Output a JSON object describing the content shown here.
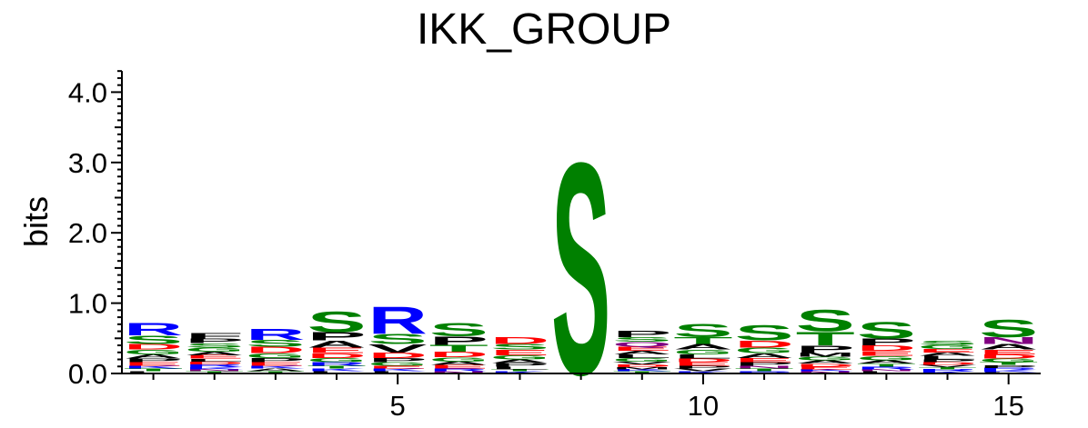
{
  "chart_data": {
    "type": "sequence-logo",
    "title": "IKK_GROUP",
    "ylabel": "bits",
    "xlabel": "",
    "ylim": [
      0,
      4.3
    ],
    "yticks": [
      "0.0",
      "1.0",
      "2.0",
      "3.0",
      "4.0"
    ],
    "xticks": [
      "5",
      "10",
      "15"
    ],
    "xtick_positions": [
      5,
      10,
      15
    ],
    "positions": [
      1,
      2,
      3,
      4,
      5,
      6,
      7,
      8,
      9,
      10,
      11,
      12,
      13,
      14,
      15
    ],
    "colors": {
      "R": "#0000ff",
      "K": "#0000ff",
      "H": "#0000ff",
      "D": "#ff0000",
      "E": "#ff0000",
      "S": "#008000",
      "T": "#008000",
      "G": "#008000",
      "Y": "#008000",
      "C": "#008000",
      "N": "#800080",
      "Q": "#800080",
      "P": "#000000",
      "A": "#000000",
      "V": "#000000",
      "L": "#000000",
      "I": "#000000",
      "M": "#000000",
      "F": "#000000",
      "W": "#000000"
    },
    "columns": [
      {
        "pos": 1,
        "letters": [
          [
            "R",
            0.18
          ],
          [
            "S",
            0.12
          ],
          [
            "D",
            0.08
          ],
          [
            "G",
            0.07
          ],
          [
            "A",
            0.06
          ],
          [
            "E",
            0.05
          ],
          [
            "P",
            0.05
          ],
          [
            "T",
            0.04
          ],
          [
            "K",
            0.04
          ],
          [
            "L",
            0.03
          ]
        ]
      },
      {
        "pos": 2,
        "letters": [
          [
            "F",
            0.08
          ],
          [
            "P",
            0.07
          ],
          [
            "G",
            0.06
          ],
          [
            "S",
            0.06
          ],
          [
            "E",
            0.05
          ],
          [
            "A",
            0.05
          ],
          [
            "R",
            0.04
          ],
          [
            "D",
            0.04
          ],
          [
            "L",
            0.04
          ],
          [
            "T",
            0.03
          ],
          [
            "N",
            0.03
          ],
          [
            "K",
            0.03
          ]
        ]
      },
      {
        "pos": 3,
        "letters": [
          [
            "R",
            0.16
          ],
          [
            "S",
            0.1
          ],
          [
            "D",
            0.09
          ],
          [
            "G",
            0.07
          ],
          [
            "P",
            0.06
          ],
          [
            "E",
            0.05
          ],
          [
            "A",
            0.04
          ],
          [
            "K",
            0.04
          ],
          [
            "T",
            0.03
          ]
        ]
      },
      {
        "pos": 4,
        "letters": [
          [
            "S",
            0.3
          ],
          [
            "P",
            0.12
          ],
          [
            "A",
            0.1
          ],
          [
            "E",
            0.08
          ],
          [
            "D",
            0.07
          ],
          [
            "G",
            0.06
          ],
          [
            "R",
            0.05
          ],
          [
            "K",
            0.04
          ],
          [
            "T",
            0.04
          ],
          [
            "L",
            0.03
          ]
        ]
      },
      {
        "pos": 5,
        "letters": [
          [
            "R",
            0.4
          ],
          [
            "S",
            0.15
          ],
          [
            "V",
            0.12
          ],
          [
            "D",
            0.08
          ],
          [
            "P",
            0.06
          ],
          [
            "G",
            0.05
          ],
          [
            "K",
            0.04
          ],
          [
            "E",
            0.04
          ],
          [
            "L",
            0.03
          ]
        ]
      },
      {
        "pos": 6,
        "letters": [
          [
            "P",
            0.12
          ],
          [
            "S",
            0.2
          ],
          [
            "T",
            0.1
          ],
          [
            "D",
            0.08
          ],
          [
            "G",
            0.06
          ],
          [
            "E",
            0.05
          ],
          [
            "A",
            0.05
          ],
          [
            "R",
            0.04
          ],
          [
            "N",
            0.03
          ]
        ]
      },
      {
        "pos": 7,
        "letters": [
          [
            "D",
            0.1
          ],
          [
            "E",
            0.08
          ],
          [
            "S",
            0.08
          ],
          [
            "G",
            0.06
          ],
          [
            "P",
            0.05
          ],
          [
            "A",
            0.05
          ],
          [
            "L",
            0.04
          ],
          [
            "K",
            0.03
          ],
          [
            "T",
            0.03
          ]
        ]
      },
      {
        "pos": 8,
        "letters": [
          [
            "S",
            3.1
          ]
        ]
      },
      {
        "pos": 9,
        "letters": [
          [
            "P",
            0.09
          ],
          [
            "Q",
            0.07
          ],
          [
            "S",
            0.07
          ],
          [
            "E",
            0.06
          ],
          [
            "G",
            0.05
          ],
          [
            "L",
            0.05
          ],
          [
            "A",
            0.05
          ],
          [
            "D",
            0.04
          ],
          [
            "V",
            0.04
          ],
          [
            "T",
            0.03
          ],
          [
            "K",
            0.03
          ],
          [
            "M",
            0.03
          ]
        ]
      },
      {
        "pos": 10,
        "letters": [
          [
            "S",
            0.2
          ],
          [
            "T",
            0.1
          ],
          [
            "A",
            0.08
          ],
          [
            "G",
            0.07
          ],
          [
            "L",
            0.06
          ],
          [
            "E",
            0.05
          ],
          [
            "D",
            0.05
          ],
          [
            "V",
            0.04
          ],
          [
            "P",
            0.04
          ],
          [
            "K",
            0.03
          ]
        ]
      },
      {
        "pos": 11,
        "letters": [
          [
            "S",
            0.22
          ],
          [
            "D",
            0.1
          ],
          [
            "G",
            0.08
          ],
          [
            "A",
            0.07
          ],
          [
            "E",
            0.06
          ],
          [
            "P",
            0.05
          ],
          [
            "T",
            0.04
          ],
          [
            "N",
            0.04
          ],
          [
            "R",
            0.03
          ]
        ]
      },
      {
        "pos": 12,
        "letters": [
          [
            "S",
            0.32
          ],
          [
            "T",
            0.2
          ],
          [
            "P",
            0.1
          ],
          [
            "M",
            0.06
          ],
          [
            "A",
            0.05
          ],
          [
            "G",
            0.05
          ],
          [
            "E",
            0.04
          ],
          [
            "D",
            0.04
          ],
          [
            "N",
            0.03
          ],
          [
            "K",
            0.03
          ]
        ]
      },
      {
        "pos": 13,
        "letters": [
          [
            "S",
            0.24
          ],
          [
            "P",
            0.1
          ],
          [
            "D",
            0.08
          ],
          [
            "E",
            0.07
          ],
          [
            "G",
            0.06
          ],
          [
            "A",
            0.05
          ],
          [
            "R",
            0.04
          ],
          [
            "T",
            0.04
          ],
          [
            "L",
            0.03
          ],
          [
            "N",
            0.03
          ]
        ]
      },
      {
        "pos": 14,
        "letters": [
          [
            "L",
            0.05
          ],
          [
            "G",
            0.06
          ],
          [
            "S",
            0.06
          ],
          [
            "A",
            0.05
          ],
          [
            "E",
            0.05
          ],
          [
            "D",
            0.04
          ],
          [
            "P",
            0.04
          ],
          [
            "K",
            0.03
          ],
          [
            "R",
            0.03
          ],
          [
            "T",
            0.03
          ],
          [
            "V",
            0.03
          ]
        ]
      },
      {
        "pos": 15,
        "letters": [
          [
            "S",
            0.26
          ],
          [
            "N",
            0.1
          ],
          [
            "A",
            0.08
          ],
          [
            "E",
            0.07
          ],
          [
            "D",
            0.06
          ],
          [
            "G",
            0.05
          ],
          [
            "P",
            0.04
          ],
          [
            "T",
            0.04
          ],
          [
            "K",
            0.03
          ],
          [
            "R",
            0.03
          ],
          [
            "L",
            0.02
          ]
        ]
      }
    ]
  }
}
